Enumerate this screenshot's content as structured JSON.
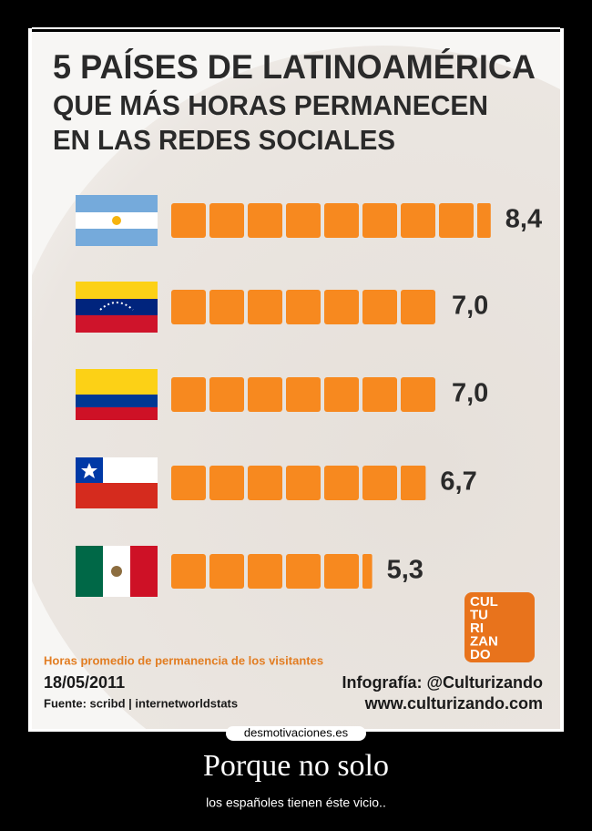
{
  "chart_data": {
    "type": "bar",
    "title": [
      "5 PAÍSES DE LATINOAMÉRICA",
      "QUE MÁS HORAS PERMANECEN",
      "EN LAS REDES SOCIALES"
    ],
    "subtitle": "Horas promedio de permanencia de los visitantes",
    "categories": [
      null,
      null,
      null,
      null,
      null
    ],
    "values": [
      8.4,
      7.0,
      7.0,
      6.7,
      5.3
    ],
    "value_labels": [
      "8,4",
      "7,0",
      "7,0",
      "6,7",
      "5,3"
    ],
    "color": "#f7891f"
  },
  "infographic": {
    "date": "18/05/2011",
    "source": "Fuente: scribd | internetworldstats",
    "credit": "Infografía: @Culturizando",
    "website": "www.culturizando.com",
    "logo": [
      "CUL",
      "TU",
      "RI",
      "ZAN",
      "DO"
    ]
  },
  "poster": {
    "watermark": "desmotivaciones.es",
    "caption": "Porque no solo",
    "text": "los españoles tienen éste vicio.."
  }
}
